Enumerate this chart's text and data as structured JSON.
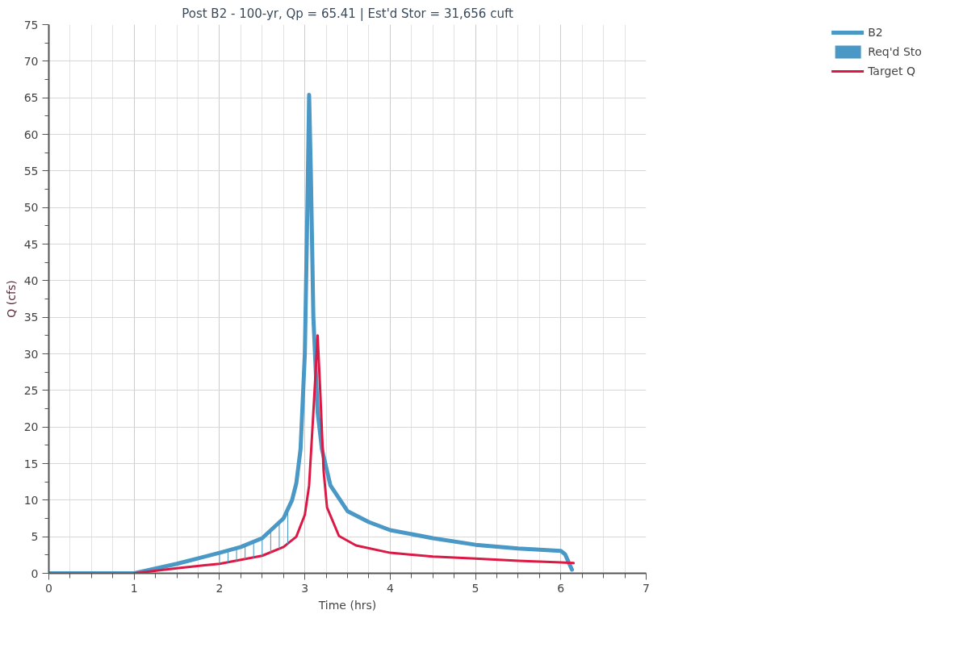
{
  "chart_data": {
    "type": "line",
    "title": "Post B2 - 100-yr, Qp = 65.41 | Est'd Stor = 31,656 cuft",
    "xlabel": "Time (hrs)",
    "ylabel": "Q (cfs)",
    "xlim": [
      0,
      7
    ],
    "ylim": [
      0,
      75
    ],
    "xticks": [
      0,
      1,
      2,
      3,
      4,
      5,
      6,
      7
    ],
    "yticks": [
      0,
      5,
      10,
      15,
      20,
      25,
      30,
      35,
      40,
      45,
      50,
      55,
      60,
      65,
      70,
      75
    ],
    "grid": true,
    "legend": "top right",
    "series": [
      {
        "name": "B2",
        "color": "#4a98c5",
        "x": [
          0,
          1,
          1.5,
          2,
          2.25,
          2.5,
          2.75,
          2.85,
          2.9,
          2.95,
          3.0,
          3.03,
          3.05,
          3.07,
          3.1,
          3.15,
          3.2,
          3.3,
          3.5,
          3.75,
          4,
          4.5,
          5,
          5.5,
          6,
          6.05,
          6.13
        ],
        "values": [
          0,
          0,
          1.3,
          2.8,
          3.6,
          4.8,
          7.5,
          10,
          12.3,
          17,
          30,
          50,
          65.4,
          55,
          35,
          22,
          17,
          12,
          8.5,
          7,
          5.9,
          4.8,
          3.9,
          3.4,
          3.05,
          2.6,
          0.5
        ]
      },
      {
        "name": "Req'd Sto",
        "color": "#4a98c5",
        "type": "bar",
        "x": [
          2.0,
          2.1,
          2.2,
          2.3,
          2.4,
          2.5,
          2.6,
          2.7,
          2.8
        ],
        "base": [
          1.3,
          1.5,
          1.7,
          1.9,
          2.1,
          2.4,
          2.8,
          3.3,
          4.0
        ],
        "values": [
          1.5,
          1.6,
          1.7,
          2.0,
          2.2,
          2.4,
          3.0,
          3.5,
          4.5
        ]
      },
      {
        "name": "Target Q",
        "color": "#dc1844",
        "x": [
          1,
          1.5,
          2,
          2.5,
          2.75,
          2.9,
          3.0,
          3.05,
          3.1,
          3.15,
          3.18,
          3.22,
          3.26,
          3.4,
          3.6,
          4,
          4.5,
          5,
          5.5,
          6,
          6.15
        ],
        "values": [
          0,
          0.7,
          1.3,
          2.4,
          3.6,
          5,
          8,
          12,
          22,
          32.5,
          25,
          14,
          9,
          5.1,
          3.8,
          2.8,
          2.3,
          2.0,
          1.7,
          1.5,
          1.4
        ]
      }
    ]
  }
}
